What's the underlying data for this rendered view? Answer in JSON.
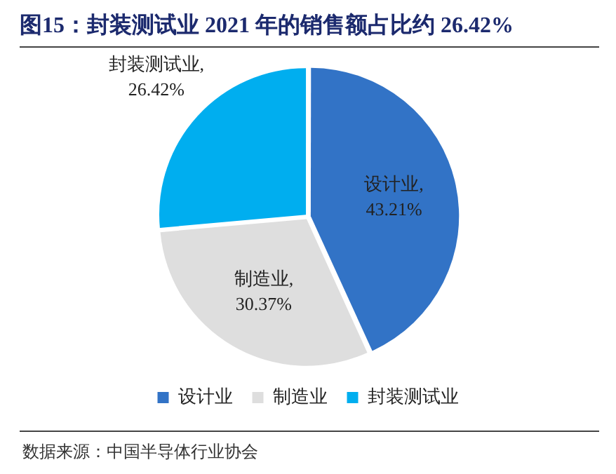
{
  "chart_data": {
    "type": "pie",
    "title": "图15：封装测试业 2021 年的销售额占比约 26.42%",
    "categories": [
      "设计业",
      "制造业",
      "封装测试业"
    ],
    "values": [
      43.21,
      30.37,
      26.42
    ],
    "colors": [
      "#3273c6",
      "#dedede",
      "#00aeef"
    ],
    "value_labels": [
      "设计业, 43.21%",
      "制造业, 30.37%",
      "封装测试业, 26.42%"
    ],
    "legend": "bottom",
    "annotations": [
      "数据来源：中国半导体行业协会"
    ]
  }
}
